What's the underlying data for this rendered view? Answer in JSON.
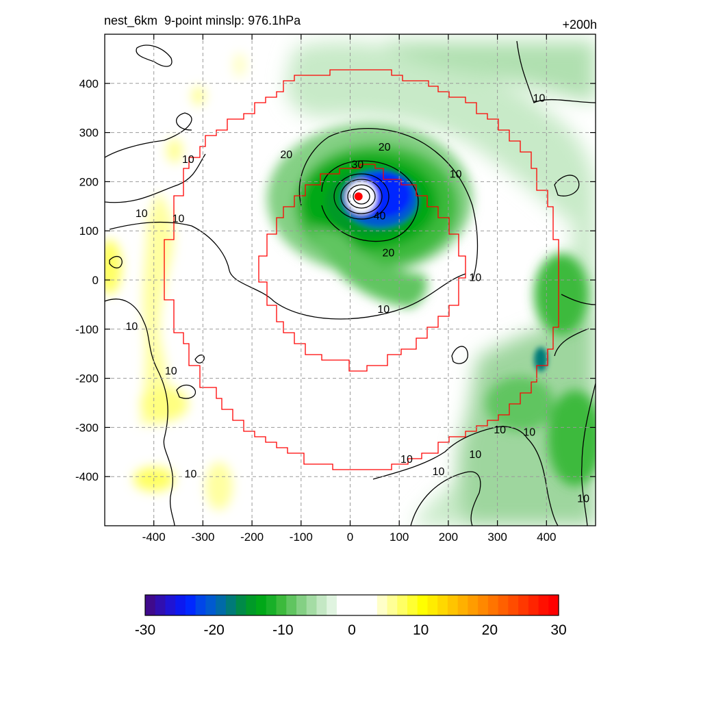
{
  "header": {
    "title": "nest_6km  9-point minslp: 976.1hPa",
    "time_label": "+200h"
  },
  "chart_data": {
    "type": "heatmap",
    "title": "nest_6km  9-point minslp: 976.1hPa",
    "forecast_hour": "+200h",
    "x_range": [
      -500,
      500
    ],
    "y_range": [
      -500,
      500
    ],
    "x_ticks": [
      -400,
      -300,
      -200,
      -100,
      0,
      100,
      200,
      300,
      400
    ],
    "y_ticks": [
      400,
      300,
      200,
      100,
      0,
      -100,
      -200,
      -300,
      -400
    ],
    "x_tick_labels": [
      "-400",
      "-300",
      "-200",
      "-100",
      "0",
      "100",
      "200",
      "300",
      "400"
    ],
    "y_tick_labels": [
      "400",
      "300",
      "200",
      "100",
      "0",
      "-100",
      "-200",
      "-300",
      "-400"
    ],
    "grid": "dashed",
    "storm_center": {
      "x": 17,
      "y": 170,
      "color": "#ff0000"
    },
    "colorbar": {
      "min": -30,
      "max": 30,
      "ticks": [
        -30,
        -20,
        -10,
        0,
        10,
        20,
        30
      ],
      "tick_labels": [
        "-30",
        "-20",
        "-10",
        "0",
        "10",
        "20",
        "30"
      ],
      "colors": [
        "#3f0a8c",
        "#300fb0",
        "#1f14d4",
        "#0c19f0",
        "#0028ff",
        "#0046e8",
        "#005ad0",
        "#006aa8",
        "#007a78",
        "#008a48",
        "#009a28",
        "#00a818",
        "#18b028",
        "#3cba3c",
        "#60c560",
        "#84d084",
        "#a4dca4",
        "#c4e8c4",
        "#e0f4e0",
        "#ffffff",
        "#ffffff",
        "#ffffff",
        "#ffffff",
        "#ffffc8",
        "#ffff96",
        "#ffff64",
        "#ffff32",
        "#ffff00",
        "#ffec00",
        "#ffd800",
        "#ffc400",
        "#ffb000",
        "#ff9c00",
        "#ff8800",
        "#ff7400",
        "#ff6000",
        "#ff4c00",
        "#ff3800",
        "#ff2400",
        "#ff1000",
        "#ff0000"
      ]
    },
    "contour_labels": [
      {
        "text": "10",
        "x": -330,
        "y": 245
      },
      {
        "text": "10",
        "x": -350,
        "y": 125
      },
      {
        "text": "10",
        "x": -425,
        "y": 135
      },
      {
        "text": "10",
        "x": -445,
        "y": -95
      },
      {
        "text": "10",
        "x": -365,
        "y": -185
      },
      {
        "text": "10",
        "x": -325,
        "y": -395
      },
      {
        "text": "20",
        "x": -130,
        "y": 255
      },
      {
        "text": "20",
        "x": 70,
        "y": 270
      },
      {
        "text": "30",
        "x": 15,
        "y": 235
      },
      {
        "text": "40",
        "x": 60,
        "y": 130
      },
      {
        "text": "20",
        "x": 78,
        "y": 55
      },
      {
        "text": "10",
        "x": 215,
        "y": 215
      },
      {
        "text": "10",
        "x": 255,
        "y": 5
      },
      {
        "text": "10",
        "x": 68,
        "y": -60
      },
      {
        "text": "10",
        "x": 385,
        "y": 370
      },
      {
        "text": "10",
        "x": 305,
        "y": -305
      },
      {
        "text": "10",
        "x": 365,
        "y": -310
      },
      {
        "text": "10",
        "x": 255,
        "y": -355
      },
      {
        "text": "10",
        "x": 115,
        "y": -365
      },
      {
        "text": "10",
        "x": 180,
        "y": -390
      },
      {
        "text": "10",
        "x": 475,
        "y": -445
      }
    ]
  }
}
